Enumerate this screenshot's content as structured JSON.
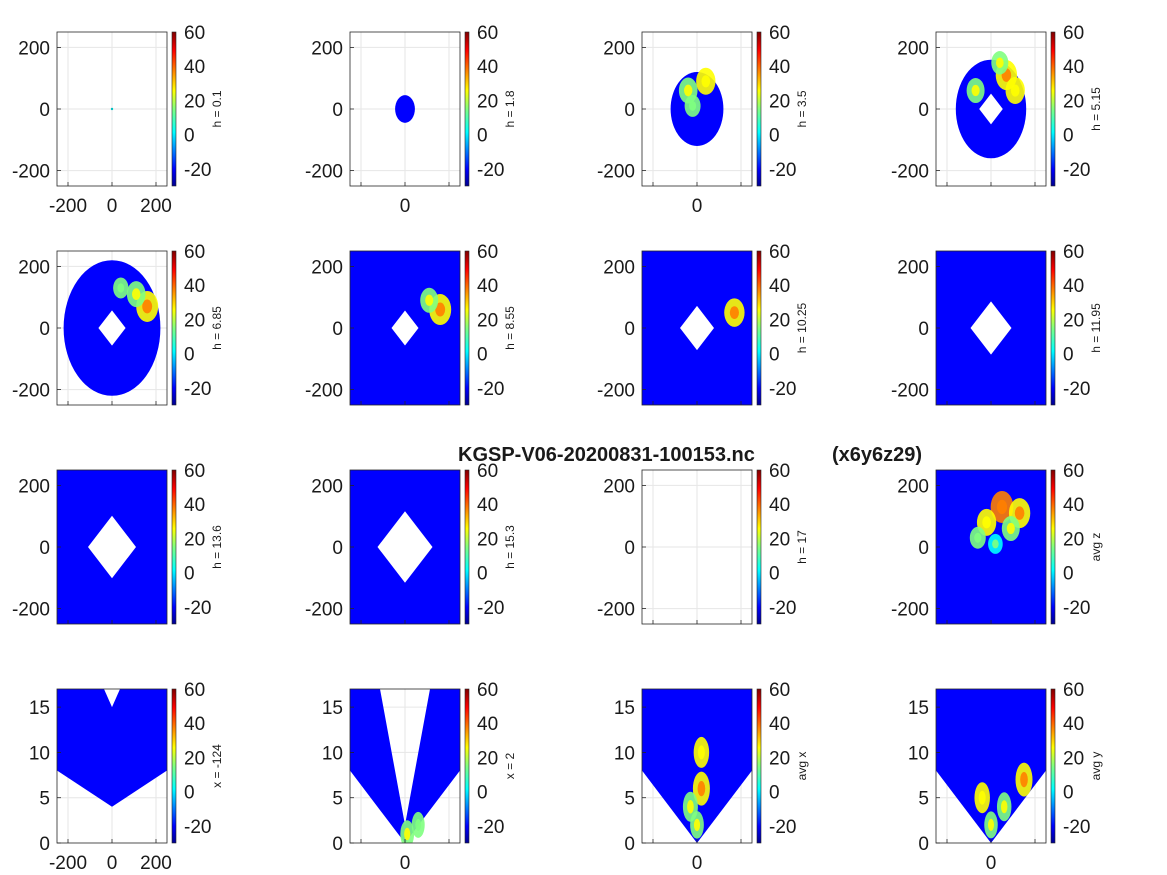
{
  "suptitle": "KGSP-V06-20200831-100153.nc",
  "grid_tag": "(x6y6z29)",
  "colormap": [
    "#00008f",
    "#0000ff",
    "#0080ff",
    "#00ffff",
    "#80ff80",
    "#ffff00",
    "#ff8000",
    "#ff0000",
    "#800000"
  ],
  "colorbar": {
    "range": [
      -30,
      60
    ],
    "ticks": [
      "60",
      "40",
      "20",
      "0",
      "-20"
    ]
  },
  "chart_data": [
    {
      "type": "heatmap",
      "view": "plan",
      "ylabel": "h = 0.1",
      "xticks": [
        "-200",
        "0",
        "200"
      ],
      "yticks": [
        "200",
        "0",
        "-200"
      ],
      "xlim": [
        -250,
        250
      ],
      "ylim": [
        -250,
        250
      ],
      "coverage": "point",
      "echo_cells": []
    },
    {
      "type": "heatmap",
      "view": "plan",
      "ylabel": "h = 1.8",
      "xticks": [
        "0"
      ],
      "yticks": [
        "200",
        "0",
        "-200"
      ],
      "xlim": [
        -250,
        250
      ],
      "ylim": [
        -250,
        250
      ],
      "coverage": "disk r≈45",
      "echo_cells": []
    },
    {
      "type": "heatmap",
      "view": "plan",
      "ylabel": "h = 3.5",
      "xticks": [
        "0"
      ],
      "yticks": [
        "200",
        "0",
        "-200"
      ],
      "xlim": [
        -250,
        250
      ],
      "ylim": [
        -250,
        250
      ],
      "coverage": "disk r≈120",
      "echo_cells": [
        {
          "x": -40,
          "y": 60,
          "v": 20
        },
        {
          "x": 40,
          "y": 90,
          "v": 22
        },
        {
          "x": -20,
          "y": 10,
          "v": 12
        }
      ]
    },
    {
      "type": "heatmap",
      "view": "plan",
      "ylabel": "h = 5.15",
      "xticks": [],
      "yticks": [
        "200",
        "0",
        "-200"
      ],
      "xlim": [
        -250,
        250
      ],
      "ylim": [
        -250,
        250
      ],
      "coverage": "disk r≈160, cone hole",
      "echo_cells": [
        {
          "x": 70,
          "y": 110,
          "v": 28
        },
        {
          "x": -70,
          "y": 60,
          "v": 18
        },
        {
          "x": 110,
          "y": 60,
          "v": 22
        },
        {
          "x": 40,
          "y": 150,
          "v": 15
        }
      ]
    },
    {
      "type": "heatmap",
      "view": "plan",
      "ylabel": "h = 6.85",
      "xticks": [],
      "yticks": [
        "200",
        "0",
        "-200"
      ],
      "xlim": [
        -250,
        250
      ],
      "ylim": [
        -250,
        250
      ],
      "coverage": "disk r≈220, cone hole",
      "echo_cells": [
        {
          "x": 160,
          "y": 70,
          "v": 30
        },
        {
          "x": 110,
          "y": 110,
          "v": 20
        },
        {
          "x": 40,
          "y": 130,
          "v": 10
        }
      ]
    },
    {
      "type": "heatmap",
      "view": "plan",
      "ylabel": "h = 8.55",
      "xticks": [],
      "yticks": [
        "200",
        "0",
        "-200"
      ],
      "xlim": [
        -250,
        250
      ],
      "ylim": [
        -250,
        250
      ],
      "coverage": "full, cone hole",
      "echo_cells": [
        {
          "x": 160,
          "y": 60,
          "v": 30
        },
        {
          "x": 110,
          "y": 90,
          "v": 18
        }
      ]
    },
    {
      "type": "heatmap",
      "view": "plan",
      "ylabel": "h = 10.25",
      "xticks": [],
      "yticks": [
        "200",
        "0",
        "-200"
      ],
      "xlim": [
        -250,
        250
      ],
      "ylim": [
        -250,
        250
      ],
      "coverage": "full, cone hole",
      "echo_cells": [
        {
          "x": 170,
          "y": 50,
          "v": 25
        }
      ]
    },
    {
      "type": "heatmap",
      "view": "plan",
      "ylabel": "h = 11.95",
      "xticks": [],
      "yticks": [
        "200",
        "0",
        "-200"
      ],
      "xlim": [
        -250,
        250
      ],
      "ylim": [
        -250,
        250
      ],
      "coverage": "full, cone hole",
      "echo_cells": []
    },
    {
      "type": "heatmap",
      "view": "plan",
      "ylabel": "h = 13.6",
      "xticks": [],
      "yticks": [
        "200",
        "0",
        "-200"
      ],
      "xlim": [
        -250,
        250
      ],
      "ylim": [
        -250,
        250
      ],
      "coverage": "full, cone hole",
      "echo_cells": []
    },
    {
      "type": "heatmap",
      "view": "plan",
      "ylabel": "h = 15.3",
      "xticks": [],
      "yticks": [
        "200",
        "0",
        "-200"
      ],
      "xlim": [
        -250,
        250
      ],
      "ylim": [
        -250,
        250
      ],
      "coverage": "full, cone hole",
      "echo_cells": []
    },
    {
      "type": "heatmap",
      "view": "plan",
      "ylabel": "h = 17",
      "xticks": [],
      "yticks": [
        "200",
        "0",
        "-200"
      ],
      "xlim": [
        -250,
        250
      ],
      "ylim": [
        -250,
        250
      ],
      "coverage": "empty",
      "echo_cells": []
    },
    {
      "type": "heatmap",
      "view": "plan",
      "ylabel": "avg z",
      "xticks": [],
      "yticks": [
        "200",
        "0",
        "-200"
      ],
      "xlim": [
        -250,
        250
      ],
      "ylim": [
        -250,
        250
      ],
      "coverage": "full",
      "echo_cells": [
        {
          "x": 50,
          "y": 130,
          "v": 32
        },
        {
          "x": 130,
          "y": 110,
          "v": 28
        },
        {
          "x": -20,
          "y": 80,
          "v": 22
        },
        {
          "x": 90,
          "y": 60,
          "v": 18
        },
        {
          "x": -60,
          "y": 30,
          "v": 12
        },
        {
          "x": 20,
          "y": 10,
          "v": 8
        }
      ]
    },
    {
      "type": "heatmap",
      "view": "vertical",
      "ylabel": "x = -124",
      "xticks": [
        "-200",
        "0",
        "200"
      ],
      "yticks": [
        "15",
        "10",
        "5",
        "0"
      ],
      "xlim": [
        -250,
        250
      ],
      "ylim": [
        0,
        17
      ],
      "coverage": "inverted cone",
      "echo_cells": []
    },
    {
      "type": "heatmap",
      "view": "vertical",
      "ylabel": "x = 2",
      "xticks": [
        "0"
      ],
      "yticks": [
        "15",
        "10",
        "5",
        "0"
      ],
      "xlim": [
        -250,
        250
      ],
      "ylim": [
        0,
        17
      ],
      "coverage": "V shape",
      "echo_cells": [
        {
          "x": 10,
          "y": 1,
          "v": 15
        },
        {
          "x": 60,
          "y": 2,
          "v": 12
        }
      ]
    },
    {
      "type": "heatmap",
      "view": "vertical",
      "ylabel": "avg x",
      "xticks": [
        "0"
      ],
      "yticks": [
        "15",
        "10",
        "5",
        "0"
      ],
      "xlim": [
        -250,
        250
      ],
      "ylim": [
        0,
        17
      ],
      "coverage": "cone",
      "echo_cells": [
        {
          "x": 20,
          "y": 6,
          "v": 28
        },
        {
          "x": 20,
          "y": 10,
          "v": 22
        },
        {
          "x": -30,
          "y": 4,
          "v": 20
        },
        {
          "x": 0,
          "y": 2,
          "v": 15
        }
      ]
    },
    {
      "type": "heatmap",
      "view": "vertical",
      "ylabel": "avg y",
      "xticks": [
        "0"
      ],
      "yticks": [
        "15",
        "10",
        "5",
        "0"
      ],
      "xlim": [
        -250,
        250
      ],
      "ylim": [
        0,
        17
      ],
      "coverage": "cone",
      "echo_cells": [
        {
          "x": 150,
          "y": 7,
          "v": 28
        },
        {
          "x": -40,
          "y": 5,
          "v": 22
        },
        {
          "x": 60,
          "y": 4,
          "v": 18
        },
        {
          "x": 0,
          "y": 2,
          "v": 14
        }
      ]
    }
  ]
}
